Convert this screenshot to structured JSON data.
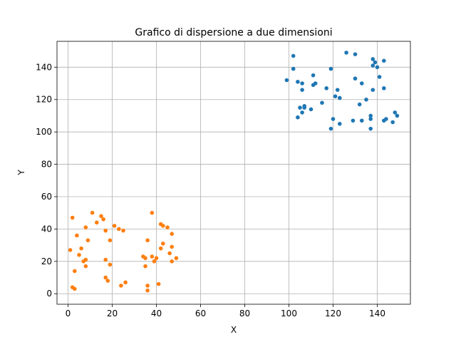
{
  "chart_data": {
    "type": "scatter",
    "title": "Grafico di dispersione a due dimensioni",
    "xlabel": "X",
    "ylabel": "Y",
    "xlim": [
      -5,
      155
    ],
    "ylim": [
      -6.5,
      156
    ],
    "xticks": [
      0,
      20,
      40,
      60,
      80,
      100,
      120,
      140
    ],
    "yticks": [
      0,
      20,
      40,
      60,
      80,
      100,
      120,
      140
    ],
    "grid": true,
    "series": [
      {
        "color": "#1f77b4",
        "points": [
          [
            102,
            147
          ],
          [
            126,
            149
          ],
          [
            130,
            148
          ],
          [
            138,
            145
          ],
          [
            143,
            144
          ],
          [
            139,
            143
          ],
          [
            138,
            141
          ],
          [
            140,
            140
          ],
          [
            102,
            139
          ],
          [
            119,
            139
          ],
          [
            141,
            134
          ],
          [
            111,
            135
          ],
          [
            130,
            133
          ],
          [
            104,
            131
          ],
          [
            99,
            132
          ],
          [
            106,
            130
          ],
          [
            133,
            130
          ],
          [
            112,
            130
          ],
          [
            111,
            129
          ],
          [
            117,
            127
          ],
          [
            143,
            127
          ],
          [
            106,
            126
          ],
          [
            122,
            126
          ],
          [
            138,
            126
          ],
          [
            121,
            122
          ],
          [
            123,
            121
          ],
          [
            135,
            120
          ],
          [
            115,
            118
          ],
          [
            132,
            117
          ],
          [
            107,
            116
          ],
          [
            105,
            115
          ],
          [
            107,
            115
          ],
          [
            110,
            114
          ],
          [
            148,
            112
          ],
          [
            106,
            112
          ],
          [
            149,
            110
          ],
          [
            137,
            110
          ],
          [
            104,
            109
          ],
          [
            120,
            108
          ],
          [
            137,
            108
          ],
          [
            129,
            107
          ],
          [
            133,
            107
          ],
          [
            144,
            108
          ],
          [
            143,
            107
          ],
          [
            147,
            106
          ],
          [
            123,
            105
          ],
          [
            119,
            102
          ],
          [
            137,
            102
          ]
        ]
      },
      {
        "color": "#ff7f0e",
        "points": [
          [
            11,
            50
          ],
          [
            38,
            50
          ],
          [
            15,
            48
          ],
          [
            2,
            47
          ],
          [
            16,
            46
          ],
          [
            13,
            44
          ],
          [
            42,
            43
          ],
          [
            43,
            42
          ],
          [
            21,
            42
          ],
          [
            8,
            41
          ],
          [
            45,
            41
          ],
          [
            23,
            40
          ],
          [
            17,
            39
          ],
          [
            25,
            39
          ],
          [
            47,
            37
          ],
          [
            4,
            36
          ],
          [
            9,
            33
          ],
          [
            19,
            33
          ],
          [
            36,
            33
          ],
          [
            43,
            31
          ],
          [
            1,
            27
          ],
          [
            6,
            28
          ],
          [
            42,
            28
          ],
          [
            47,
            29
          ],
          [
            5,
            24
          ],
          [
            46,
            25
          ],
          [
            34,
            23
          ],
          [
            35,
            22
          ],
          [
            38,
            23
          ],
          [
            40,
            22
          ],
          [
            49,
            22
          ],
          [
            8,
            21
          ],
          [
            7,
            20
          ],
          [
            17,
            21
          ],
          [
            39,
            20
          ],
          [
            47,
            20
          ],
          [
            19,
            18
          ],
          [
            8,
            17
          ],
          [
            35,
            17
          ],
          [
            3,
            14
          ],
          [
            17,
            10
          ],
          [
            18,
            8
          ],
          [
            26,
            7
          ],
          [
            41,
            6
          ],
          [
            24,
            5
          ],
          [
            2,
            4
          ],
          [
            3,
            3
          ],
          [
            36,
            5
          ],
          [
            36,
            2
          ]
        ]
      }
    ]
  }
}
